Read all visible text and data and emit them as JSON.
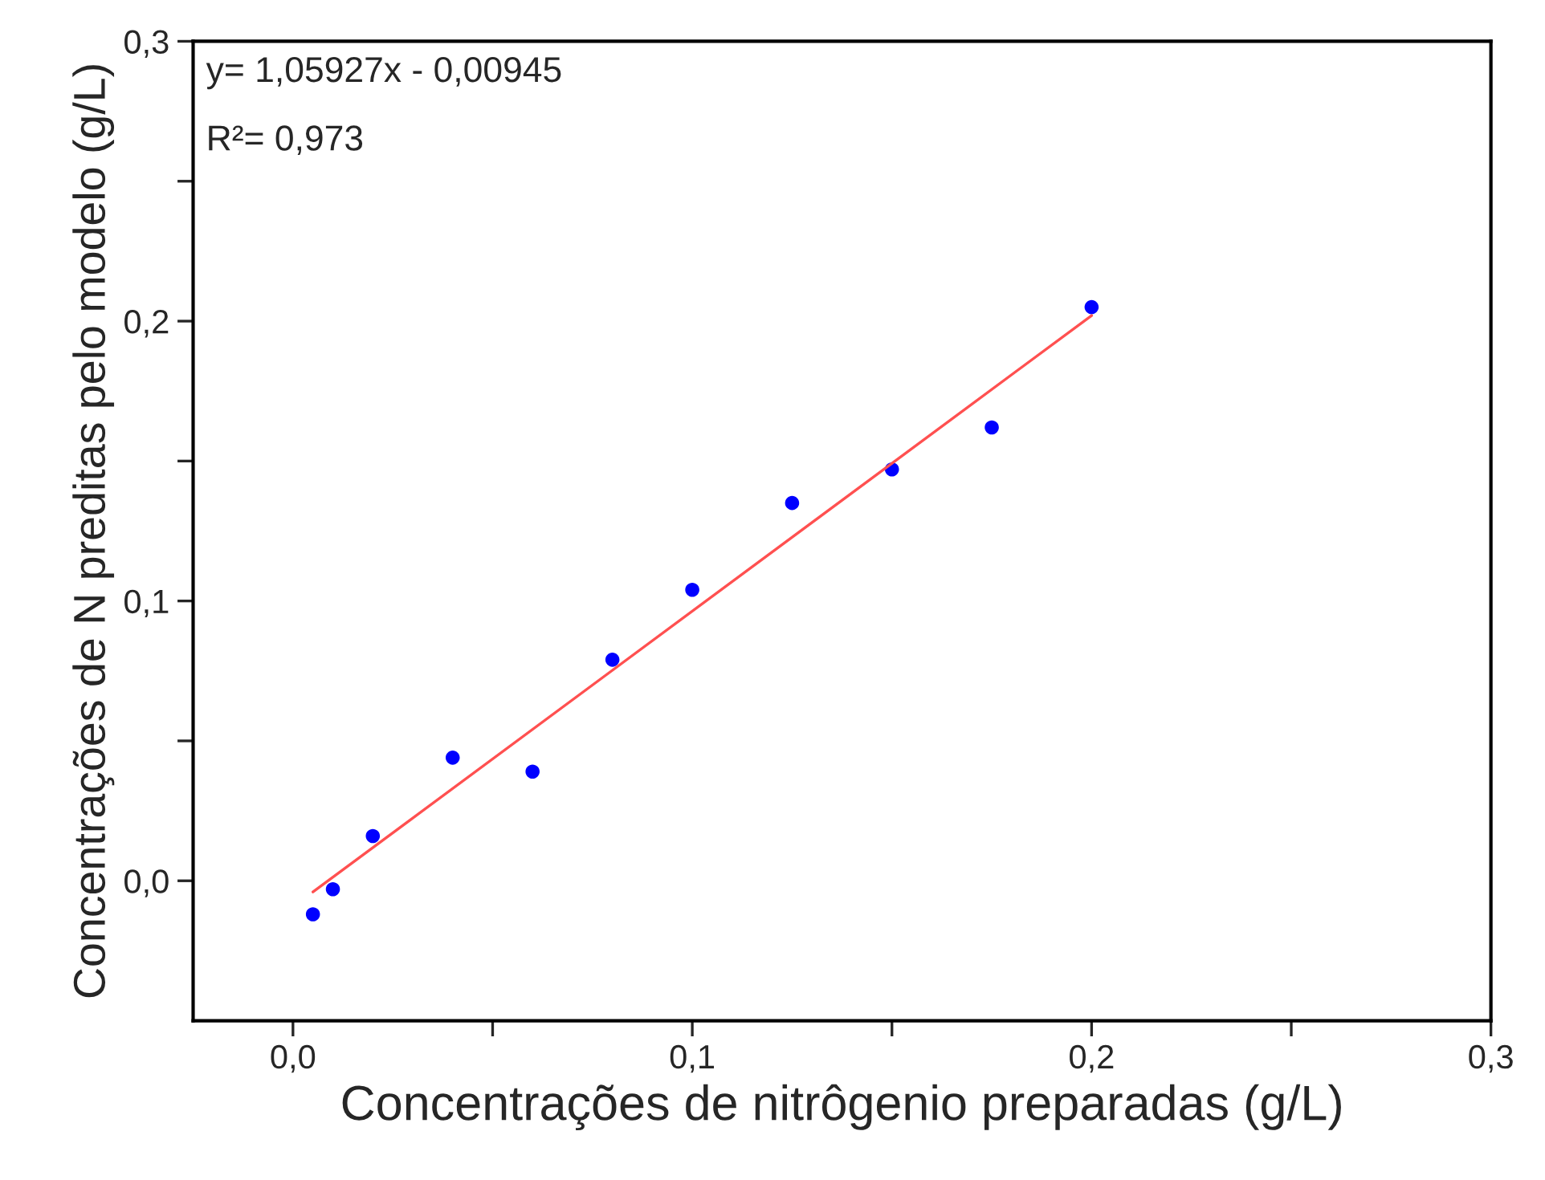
{
  "chart_data": {
    "type": "scatter",
    "xlabel": "Concentrações de nitrôgenio preparadas (g/L)",
    "ylabel": "Concentrações de N preditas pelo modelo (g/L)",
    "annotations": [
      "y= 1,05927x - 0,00945",
      "R²= 0,973"
    ],
    "series": [
      {
        "color": "#0000ff",
        "marker": "circle",
        "x": [
          0.005,
          0.01,
          0.02,
          0.04,
          0.06,
          0.08,
          0.1,
          0.125,
          0.15,
          0.175,
          0.2
        ],
        "values": [
          -0.012,
          -0.003,
          0.016,
          0.044,
          0.039,
          0.079,
          0.104,
          0.135,
          0.147,
          0.162,
          0.205
        ]
      },
      {
        "type": "line",
        "color": "#ff5050",
        "x": [
          0.005,
          0.2
        ],
        "values": [
          -0.004,
          0.202
        ]
      }
    ],
    "xlim": [
      -0.025,
      0.3
    ],
    "ylim": [
      -0.05,
      0.3
    ],
    "xticks": [
      {
        "value": 0,
        "label": "0,0"
      },
      {
        "value": 0.05,
        "label": null
      },
      {
        "value": 0.1,
        "label": "0,1"
      },
      {
        "value": 0.15,
        "label": null
      },
      {
        "value": 0.2,
        "label": "0,2"
      },
      {
        "value": 0.25,
        "label": null
      },
      {
        "value": 0.3,
        "label": "0,3"
      }
    ],
    "yticks": [
      {
        "value": 0,
        "label": "0,0"
      },
      {
        "value": 0.05,
        "label": null
      },
      {
        "value": 0.1,
        "label": "0,1"
      },
      {
        "value": 0.15,
        "label": null
      },
      {
        "value": 0.2,
        "label": "0,2"
      },
      {
        "value": 0.25,
        "label": null
      },
      {
        "value": 0.3,
        "label": "0,3"
      }
    ],
    "grid": false,
    "legend": false
  }
}
